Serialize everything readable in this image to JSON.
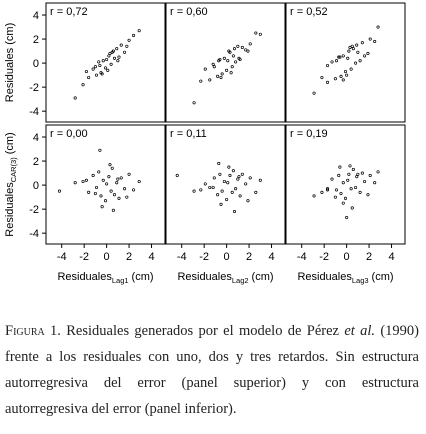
{
  "chart_data": [
    {
      "type": "scatter",
      "annotation": "r = 0,72",
      "ylabel": "Residuales (cm)",
      "xlim": [
        -5.4,
        5.2
      ],
      "ylim": [
        -4.9,
        5
      ],
      "yticks": [
        -4,
        -2,
        0,
        2,
        4
      ],
      "x": [
        -2.1,
        -1.6,
        -1.2,
        -0.9,
        -0.7,
        -0.5,
        -0.3,
        -0.1,
        0,
        0.2,
        0.4,
        0.5,
        0.7,
        0.9,
        1.1,
        1.3,
        1.6,
        2.0,
        2.4,
        -2.8,
        -0.4,
        0.3,
        1.0,
        -1.0,
        0.6,
        -1.8,
        1.8,
        2.9,
        -0.6,
        0.1
      ],
      "y": [
        -1.8,
        -1.2,
        -0.5,
        -1.0,
        0.1,
        -0.8,
        0.2,
        -0.4,
        0.3,
        0.6,
        -0.1,
        0.9,
        0.4,
        1.2,
        0.5,
        1.5,
        0.9,
        1.9,
        2.3,
        -2.9,
        -0.9,
        0.8,
        0.2,
        -0.3,
        1.0,
        -0.7,
        1.4,
        2.7,
        -0.2,
        -0.6
      ]
    },
    {
      "type": "scatter",
      "annotation": "r = 0,60",
      "xlim": [
        -5.4,
        5.2
      ],
      "ylim": [
        -4.9,
        5
      ],
      "x": [
        -2.3,
        -1.5,
        -1.1,
        -0.8,
        -0.6,
        -0.4,
        -0.2,
        0,
        0.1,
        0.3,
        0.5,
        0.6,
        0.8,
        1.0,
        1.2,
        1.4,
        1.7,
        2.1,
        2.6,
        -2.9,
        -0.5,
        0.2,
        1.1,
        -1.2,
        0.7,
        -1.9,
        1.9,
        3.0,
        -0.7,
        0.4
      ],
      "y": [
        -1.5,
        -1.4,
        -0.3,
        -1.1,
        0.3,
        -0.9,
        0.4,
        -0.6,
        0.2,
        0.9,
        -0.3,
        0.6,
        0.1,
        1.4,
        0.3,
        1.3,
        1.1,
        1.6,
        2.5,
        -3.3,
        -1.2,
        1.0,
        0.4,
        -0.1,
        1.2,
        -0.5,
        1.0,
        2.4,
        0.2,
        -0.8
      ]
    },
    {
      "type": "scatter",
      "annotation": "r = 0,52",
      "xlim": [
        -5.4,
        5.2
      ],
      "ylim": [
        -4.9,
        5
      ],
      "x": [
        -2.2,
        -1.7,
        -1.3,
        -1.0,
        -0.7,
        -0.5,
        -0.3,
        -0.1,
        0.1,
        0.2,
        0.4,
        0.6,
        0.8,
        0.9,
        1.2,
        1.4,
        1.6,
        2.1,
        2.5,
        -2.9,
        -0.3,
        0.3,
        1.0,
        -0.9,
        0.5,
        -1.7,
        1.9,
        2.8,
        -0.6,
        0.0
      ],
      "y": [
        -1.2,
        -1.6,
        0.1,
        -1.3,
        0.5,
        -1.1,
        0.6,
        -0.7,
        0.4,
        1.0,
        -0.5,
        1.2,
        0.0,
        1.5,
        0.2,
        1.7,
        0.6,
        2.0,
        1.8,
        -2.5,
        -1.4,
        1.3,
        0.9,
        0.2,
        1.4,
        -0.2,
        0.8,
        3.0,
        0.5,
        -1.0
      ]
    },
    {
      "type": "scatter",
      "annotation": "r = 0,00",
      "ylabel": "Residuales",
      "ylabel_sub": "CAR(3)",
      "ylabel_unit": "(cm)",
      "xlabel": "Residuales",
      "xlabel_sub": "Lag1",
      "xlabel_unit": "(cm)",
      "xlim": [
        -5.4,
        5.2
      ],
      "ylim": [
        -4.9,
        5
      ],
      "xticks": [
        -4,
        -2,
        0,
        2,
        4
      ],
      "yticks": [
        -4,
        -2,
        0,
        2,
        4
      ],
      "x": [
        -2.1,
        -1.6,
        -1.2,
        -0.9,
        -0.7,
        -0.5,
        -0.3,
        -0.1,
        0,
        0.2,
        0.4,
        0.5,
        0.7,
        0.9,
        1.1,
        1.3,
        1.6,
        2.0,
        2.4,
        -2.8,
        -0.4,
        0.3,
        1.0,
        -1.0,
        0.6,
        -1.8,
        1.8,
        2.9,
        -0.6,
        -4.2
      ],
      "y": [
        0.3,
        -0.6,
        0.8,
        -0.2,
        1.1,
        -0.9,
        0.4,
        -1.3,
        0.1,
        0.7,
        -0.5,
        1.4,
        -0.8,
        0.2,
        -1.1,
        0.6,
        -0.3,
        0.9,
        -0.4,
        0.2,
        -1.8,
        1.7,
        0.5,
        -0.7,
        -2.1,
        0.4,
        -1.0,
        0.3,
        2.9,
        -0.5
      ]
    },
    {
      "type": "scatter",
      "annotation": "r = 0,11",
      "xlabel": "Residuales",
      "xlabel_sub": "Lag2",
      "xlabel_unit": "(cm)",
      "xlim": [
        -5.4,
        5.2
      ],
      "ylim": [
        -4.9,
        5
      ],
      "xticks": [
        -4,
        -2,
        0,
        2,
        4
      ],
      "x": [
        -2.3,
        -1.5,
        -1.1,
        -0.8,
        -0.6,
        -0.4,
        -0.2,
        0,
        0.1,
        0.3,
        0.5,
        0.6,
        0.8,
        1.0,
        1.2,
        1.4,
        1.7,
        2.1,
        2.6,
        -2.9,
        -0.5,
        0.2,
        1.1,
        -1.2,
        0.7,
        -1.9,
        1.9,
        3.0,
        -0.7,
        -4.4
      ],
      "y": [
        -0.4,
        -0.2,
        0.6,
        -0.8,
        0.9,
        -0.5,
        0.3,
        -1.2,
        0.2,
        0.8,
        -0.6,
        1.2,
        -0.3,
        0.5,
        -0.9,
        0.9,
        0.1,
        0.6,
        -0.6,
        -0.5,
        -1.6,
        1.5,
        0.7,
        -0.2,
        -2.2,
        0.1,
        -1.3,
        0.4,
        1.8,
        0.8
      ]
    },
    {
      "type": "scatter",
      "annotation": "r = 0,19",
      "xlabel": "Residuales",
      "xlabel_sub": "Lag3",
      "xlabel_unit": "(cm)",
      "xlim": [
        -5.4,
        5.2
      ],
      "ylim": [
        -4.9,
        5
      ],
      "xticks": [
        -4,
        -2,
        0,
        2,
        4
      ],
      "x": [
        -2.2,
        -1.7,
        -1.3,
        -1.0,
        -0.7,
        -0.5,
        -0.3,
        -0.1,
        0.1,
        0.2,
        0.4,
        0.6,
        0.8,
        0.9,
        1.2,
        1.4,
        1.6,
        2.1,
        2.5,
        -2.9,
        -0.3,
        0.3,
        1.0,
        -0.9,
        0.5,
        -1.7,
        1.9,
        2.8,
        -0.6,
        0.0
      ],
      "y": [
        -0.6,
        -0.4,
        0.5,
        -1.0,
        0.8,
        -0.7,
        0.2,
        -1.1,
        0.4,
        0.9,
        -0.3,
        1.3,
        -0.2,
        0.7,
        -0.6,
        1.0,
        0.3,
        0.8,
        0.2,
        -0.9,
        -1.5,
        1.6,
        0.9,
        -0.4,
        -1.9,
        -0.3,
        -0.8,
        1.1,
        1.5,
        -2.7
      ]
    }
  ],
  "caption": {
    "label": "Figura 1.",
    "text1": "Residuales generados por el modelo de Pérez",
    "italic": "et al.",
    "text2": "(1990) frente a los residuales con uno, dos y tres retardos. Sin estructura autorregresiva del error (panel superior) y con estructura autorregresiva del error (panel inferior)."
  }
}
